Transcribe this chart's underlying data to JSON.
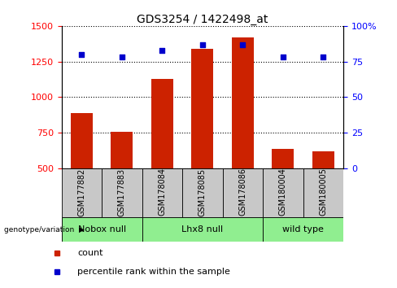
{
  "title": "GDS3254 / 1422498_at",
  "samples": [
    "GSM177882",
    "GSM177883",
    "GSM178084",
    "GSM178085",
    "GSM178086",
    "GSM180004",
    "GSM180005"
  ],
  "counts": [
    890,
    760,
    1130,
    1340,
    1420,
    640,
    620
  ],
  "percentiles": [
    80,
    78,
    83,
    87,
    87,
    78,
    78
  ],
  "ylim_left": [
    500,
    1500
  ],
  "ylim_right": [
    0,
    100
  ],
  "yticks_left": [
    500,
    750,
    1000,
    1250,
    1500
  ],
  "yticks_right": [
    0,
    25,
    50,
    75,
    100
  ],
  "groups": [
    {
      "label": "Nobox null",
      "indices": [
        0,
        1
      ]
    },
    {
      "label": "Lhx8 null",
      "indices": [
        2,
        3,
        4
      ]
    },
    {
      "label": "wild type",
      "indices": [
        5,
        6
      ]
    }
  ],
  "group_color": "#90ee90",
  "bar_color": "#cc2200",
  "dot_color": "#0000cc",
  "bar_width": 0.55,
  "bg_color": "#ffffff",
  "sample_box_color": "#c8c8c8",
  "legend_labels": [
    "count",
    "percentile rank within the sample"
  ]
}
